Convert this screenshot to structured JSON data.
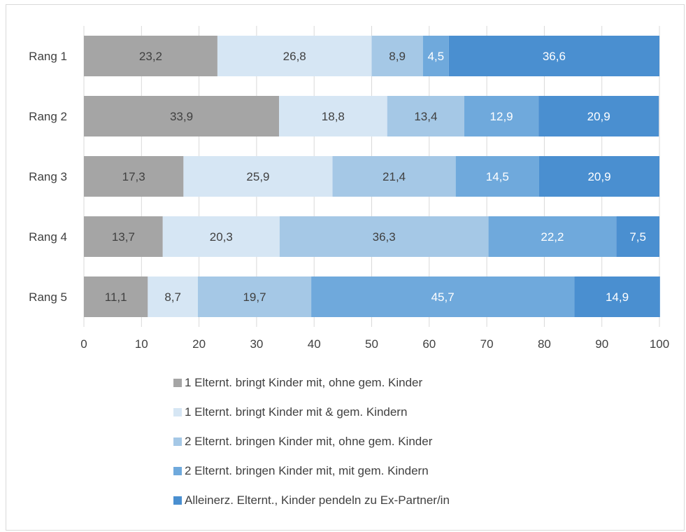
{
  "chart_data": {
    "type": "bar",
    "orientation": "horizontal",
    "stacked": true,
    "categories": [
      "Rang 1",
      "Rang 2",
      "Rang 3",
      "Rang 4",
      "Rang 5"
    ],
    "series": [
      {
        "name": "1 Elternt. bringt Kinder mit, ohne gem. Kinder",
        "color": "#a5a5a5",
        "label_color": "#404040",
        "values": [
          23.2,
          33.9,
          17.3,
          13.7,
          11.1
        ]
      },
      {
        "name": "1 Elternt. bringt Kinder mit & gem. Kindern",
        "color": "#d6e6f4",
        "label_color": "#404040",
        "values": [
          26.8,
          18.8,
          25.9,
          20.3,
          8.7
        ]
      },
      {
        "name": "2 Elternt. bringen Kinder mit, ohne gem. Kinder",
        "color": "#a5c8e6",
        "label_color": "#404040",
        "values": [
          8.9,
          13.4,
          21.4,
          36.3,
          19.7
        ]
      },
      {
        "name": "2 Elternt. bringen Kinder mit, mit gem. Kindern",
        "color": "#6fa9dc",
        "label_color": "#ffffff",
        "values": [
          4.5,
          12.9,
          14.5,
          22.2,
          45.7
        ]
      },
      {
        "name": "Alleinerz. Elternt., Kinder pendeln zu Ex-Partner/in",
        "color": "#4a8fd0",
        "label_color": "#ffffff",
        "values": [
          36.6,
          20.9,
          20.9,
          7.5,
          14.9
        ]
      }
    ],
    "data_labels": [
      [
        "23,2",
        "33,9",
        "17,3",
        "13,7",
        "11,1"
      ],
      [
        "26,8",
        "18,8",
        "25,9",
        "20,3",
        "8,7"
      ],
      [
        "8,9",
        "13,4",
        "21,4",
        "36,3",
        "19,7"
      ],
      [
        "4,5",
        "12,9",
        "14,5",
        "22,2",
        "45,7"
      ],
      [
        "36,6",
        "20,9",
        "20,9",
        "7,5",
        "14,9"
      ]
    ],
    "x_ticks": [
      "0",
      "10",
      "20",
      "30",
      "40",
      "50",
      "60",
      "70",
      "80",
      "90",
      "100"
    ],
    "xlim": [
      0,
      100
    ],
    "xlabel": "",
    "ylabel": "",
    "title": "",
    "grid": true,
    "legend_position": "bottom"
  }
}
